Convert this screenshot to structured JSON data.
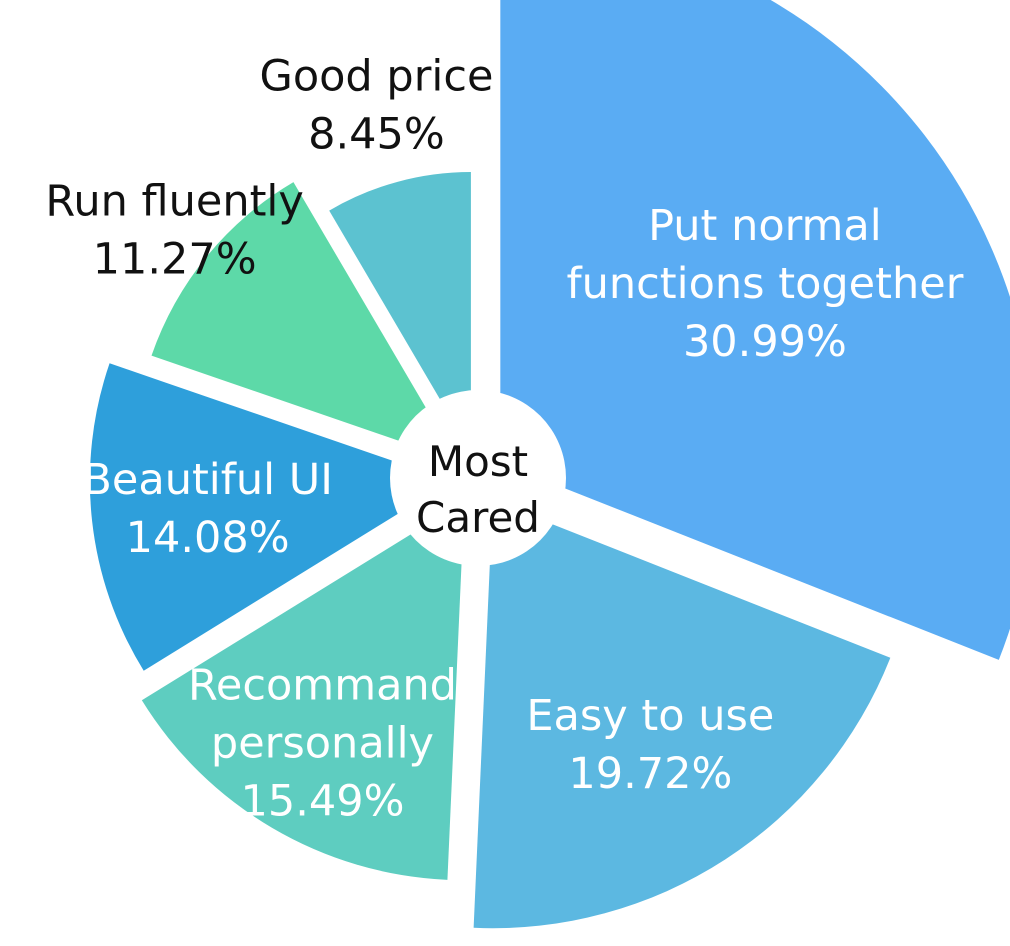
{
  "chart_data": {
    "type": "pie",
    "variant": "rose",
    "title": "",
    "center_text": [
      "Most",
      "Cared"
    ],
    "labels": [
      "Put normal functions together",
      "Easy to use",
      "Recommand personally",
      "Beautiful UI",
      "Run fluently",
      "Good price"
    ],
    "values": [
      30.99,
      19.72,
      15.49,
      14.08,
      11.27,
      8.45
    ],
    "value_labels": [
      "30.99%",
      "19.72%",
      "15.49%",
      "14.08%",
      "11.27%",
      "8.45%"
    ],
    "label_lines": [
      [
        "Put normal",
        "functions together",
        "30.99%"
      ],
      [
        "Easy to use",
        "19.72%"
      ],
      [
        "Recommand",
        "personally",
        "15.49%"
      ],
      [
        "Beautiful UI",
        "14.08%"
      ],
      [
        "Run fluently",
        "11.27%"
      ],
      [
        "Good price",
        "8.45%"
      ]
    ],
    "colors": [
      "#5aacf3",
      "#5cb8e1",
      "#5ecdc0",
      "#2e9fdb",
      "#5dd9a8",
      "#5cc2d0"
    ],
    "legend": "none"
  }
}
